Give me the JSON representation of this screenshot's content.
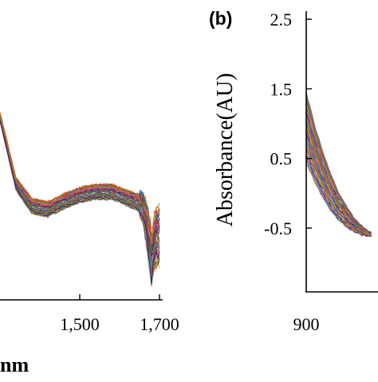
{
  "chart_data": [
    {
      "panel": "a",
      "type": "line",
      "title": "",
      "xlabel": "nm",
      "ylabel": "",
      "xlim": [
        1300,
        1700
      ],
      "x_ticks": [
        {
          "value": 1500,
          "label": "1,500"
        },
        {
          "value": 1700,
          "label": "1,700"
        }
      ],
      "grid": false,
      "legend": "none",
      "series_count": 60,
      "envelope_x": [
        1300,
        1340,
        1380,
        1420,
        1460,
        1500,
        1540,
        1580,
        1620,
        1650,
        1660,
        1670,
        1680,
        1690,
        1700
      ],
      "envelope_mid": [
        1.0,
        0.58,
        0.44,
        0.42,
        0.47,
        0.51,
        0.53,
        0.53,
        0.49,
        0.46,
        0.42,
        0.3,
        0.12,
        0.25,
        0.26
      ],
      "envelope_spread": [
        0.03,
        0.04,
        0.05,
        0.05,
        0.05,
        0.05,
        0.05,
        0.05,
        0.05,
        0.06,
        0.08,
        0.14,
        0.16,
        0.18,
        0.18
      ]
    },
    {
      "panel": "b",
      "type": "line",
      "title": "",
      "xlabel": "",
      "ylabel": "Absorbance(AU)",
      "xlim": [
        900,
        1100
      ],
      "ylim": [
        -1.0,
        2.5
      ],
      "x_ticks": [
        {
          "value": 900,
          "label": "900"
        }
      ],
      "y_ticks": [
        {
          "value": 2.5,
          "label": "2.5"
        },
        {
          "value": 1.5,
          "label": "1.5"
        },
        {
          "value": 0.5,
          "label": "0.5"
        },
        {
          "value": -0.5,
          "label": "-0.5"
        }
      ],
      "grid": false,
      "legend": "none",
      "series_count": 40,
      "envelope_x": [
        900,
        910,
        920,
        930,
        940,
        950,
        960,
        970,
        980
      ],
      "envelope_top": [
        1.45,
        1.0,
        0.62,
        0.3,
        0.03,
        -0.18,
        -0.35,
        -0.47,
        -0.56
      ],
      "envelope_bottom": [
        0.45,
        0.18,
        -0.05,
        -0.24,
        -0.38,
        -0.48,
        -0.55,
        -0.6,
        -0.62
      ]
    }
  ],
  "labels": {
    "panel_b": "(b)",
    "panel_a_x_unit": "nm"
  },
  "colors": {
    "axis": "#000000",
    "series_palette": [
      "#c0392b",
      "#1f3fbf",
      "#2e8b2e",
      "#8e2a8e",
      "#d4a017",
      "#1aa3a3",
      "#e06fb4",
      "#7a5230",
      "#505050",
      "#ff6a00",
      "#6b8e23",
      "#4b0082"
    ]
  }
}
